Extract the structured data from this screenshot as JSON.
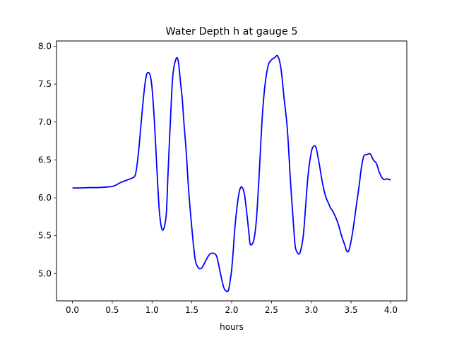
{
  "chart_data": {
    "type": "line",
    "title": "Water Depth h at gauge 5",
    "xlabel": "hours",
    "ylabel": "",
    "xlim": [
      -0.2,
      4.2
    ],
    "ylim": [
      4.64,
      8.07
    ],
    "grid": false,
    "xticks": [
      "0.0",
      "0.5",
      "1.0",
      "1.5",
      "2.0",
      "2.5",
      "3.0",
      "3.5",
      "4.0"
    ],
    "yticks": [
      "5.0",
      "5.5",
      "6.0",
      "6.5",
      "7.0",
      "7.5",
      "8.0"
    ],
    "series": [
      {
        "color": "#0000ff",
        "x": [
          0.0,
          0.1,
          0.2,
          0.3,
          0.4,
          0.5,
          0.55,
          0.6,
          0.65,
          0.7,
          0.75,
          0.78,
          0.8,
          0.83,
          0.86,
          0.9,
          0.93,
          0.96,
          0.98,
          1.0,
          1.03,
          1.06,
          1.09,
          1.12,
          1.15,
          1.18,
          1.2,
          1.23,
          1.26,
          1.3,
          1.33,
          1.36,
          1.38,
          1.4,
          1.43,
          1.46,
          1.5,
          1.54,
          1.58,
          1.62,
          1.65,
          1.68,
          1.72,
          1.76,
          1.8,
          1.82,
          1.84,
          1.87,
          1.9,
          1.93,
          1.96,
          1.98,
          2.0,
          2.02,
          2.04,
          2.07,
          2.1,
          2.13,
          2.16,
          2.19,
          2.22,
          2.23,
          2.25,
          2.28,
          2.31,
          2.34,
          2.37,
          2.39,
          2.42,
          2.46,
          2.5,
          2.54,
          2.58,
          2.62,
          2.66,
          2.7,
          2.74,
          2.78,
          2.8,
          2.83,
          2.86,
          2.9,
          2.93,
          2.96,
          3.0,
          3.03,
          3.06,
          3.1,
          3.14,
          3.18,
          3.22,
          3.24,
          3.26,
          3.3,
          3.34,
          3.38,
          3.42,
          3.45,
          3.48,
          3.52,
          3.56,
          3.6,
          3.63,
          3.66,
          3.7,
          3.74,
          3.78,
          3.82,
          3.85,
          3.88,
          3.9,
          3.92,
          3.95,
          3.98,
          4.0
        ],
        "y": [
          6.13,
          6.13,
          6.135,
          6.135,
          6.14,
          6.15,
          6.17,
          6.2,
          6.22,
          6.24,
          6.26,
          6.28,
          6.35,
          6.6,
          6.95,
          7.4,
          7.62,
          7.65,
          7.6,
          7.45,
          7.0,
          6.4,
          5.85,
          5.6,
          5.6,
          5.8,
          6.3,
          7.0,
          7.6,
          7.83,
          7.8,
          7.5,
          7.3,
          7.0,
          6.6,
          6.1,
          5.6,
          5.2,
          5.08,
          5.07,
          5.12,
          5.18,
          5.25,
          5.27,
          5.25,
          5.2,
          5.1,
          4.95,
          4.82,
          4.77,
          4.78,
          4.9,
          5.05,
          5.3,
          5.6,
          5.9,
          6.1,
          6.14,
          6.05,
          5.8,
          5.5,
          5.4,
          5.38,
          5.45,
          5.7,
          6.2,
          6.8,
          7.15,
          7.5,
          7.75,
          7.82,
          7.85,
          7.87,
          7.7,
          7.3,
          6.9,
          6.2,
          5.6,
          5.35,
          5.27,
          5.28,
          5.5,
          5.9,
          6.3,
          6.6,
          6.68,
          6.66,
          6.45,
          6.2,
          6.02,
          5.92,
          5.87,
          5.84,
          5.76,
          5.65,
          5.5,
          5.38,
          5.29,
          5.33,
          5.55,
          5.85,
          6.15,
          6.4,
          6.55,
          6.57,
          6.58,
          6.5,
          6.45,
          6.35,
          6.28,
          6.25,
          6.24,
          6.25,
          6.24,
          6.24
        ]
      }
    ]
  }
}
